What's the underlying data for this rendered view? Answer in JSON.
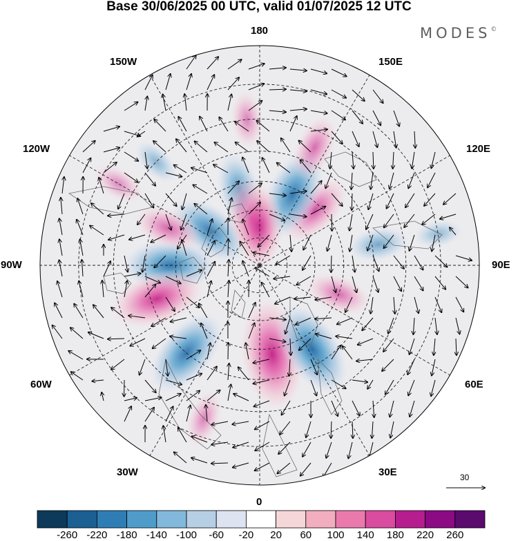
{
  "title": "Base 30/06/2025 00 UTC, valid 01/07/2025 12 UTC",
  "brand": {
    "name": "MODES",
    "mark": "©"
  },
  "longitude_labels": {
    "top": "180",
    "bottom": "0",
    "left": "90W",
    "right": "90E",
    "upper_left_1": "150W",
    "upper_left_2": "120W",
    "upper_right_1": "150E",
    "upper_right_2": "120E",
    "lower_left_1": "60W",
    "lower_left_2": "30W",
    "lower_right_1": "60E",
    "lower_right_2": "30E"
  },
  "wind_reference": {
    "value": "30"
  },
  "colorbar": {
    "labels": [
      "-260",
      "-220",
      "-180",
      "-140",
      "-100",
      "-60",
      "-20",
      "20",
      "60",
      "100",
      "140",
      "180",
      "220",
      "260"
    ],
    "colors": [
      "#0d3a5a",
      "#1b5f93",
      "#2f7db5",
      "#4f9ccb",
      "#82b8db",
      "#b7cfe5",
      "#dde3f0",
      "#ffffff",
      "#f6d7d9",
      "#f2aebf",
      "#ea7aac",
      "#d94c9f",
      "#b61e8f",
      "#8c0a84",
      "#5b0a6e"
    ]
  },
  "anomaly_features": [
    {
      "lon": -125,
      "lat": 68,
      "value": -160
    },
    {
      "lon": -165,
      "lat": 62,
      "value": -120
    },
    {
      "lon": -90,
      "lat": 58,
      "value": -180
    },
    {
      "lon": -112,
      "lat": 55,
      "value": 100
    },
    {
      "lon": -72,
      "lat": 52,
      "value": 180
    },
    {
      "lon": -40,
      "lat": 50,
      "value": -180
    },
    {
      "lon": 8,
      "lat": 58,
      "value": 240
    },
    {
      "lon": 32,
      "lat": 55,
      "value": -200
    },
    {
      "lon": 70,
      "lat": 60,
      "value": 90
    },
    {
      "lon": 100,
      "lat": 48,
      "value": -70
    },
    {
      "lon": 135,
      "lat": 62,
      "value": 130
    },
    {
      "lon": 155,
      "lat": 62,
      "value": -180
    },
    {
      "lon": -170,
      "lat": 73,
      "value": 150
    },
    {
      "lon": 180,
      "lat": 76,
      "value": 150
    },
    {
      "lon": 155,
      "lat": 45,
      "value": 90
    },
    {
      "lon": -175,
      "lat": 40,
      "value": 60
    },
    {
      "lon": -120,
      "lat": 35,
      "value": 50
    },
    {
      "lon": -20,
      "lat": 35,
      "value": 60
    },
    {
      "lon": -135,
      "lat": 40,
      "value": -40
    },
    {
      "lon": 100,
      "lat": 30,
      "value": -30
    }
  ]
}
